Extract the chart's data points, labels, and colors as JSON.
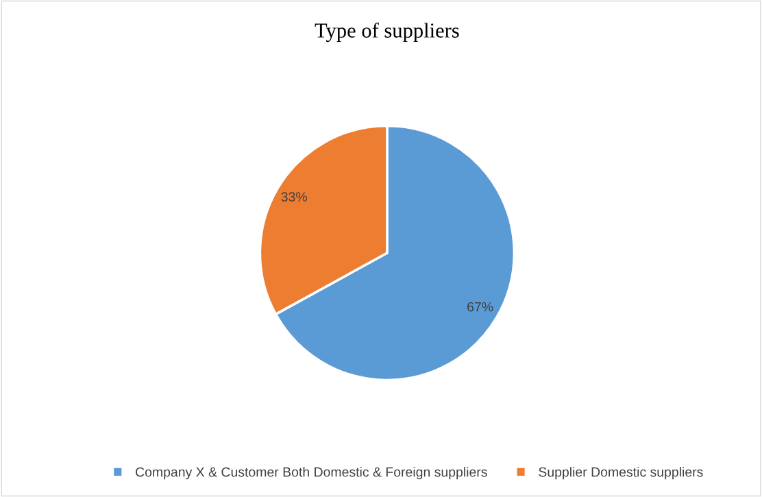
{
  "chart_data": {
    "type": "pie",
    "title": "Type of suppliers",
    "categories": [
      "Company X & Customer Both Domestic & Foreign suppliers",
      "Supplier Domestic suppliers"
    ],
    "values": [
      67,
      33
    ],
    "colors": [
      "#5b9bd5",
      "#ed7d31"
    ],
    "value_labels": [
      "67%",
      "33%"
    ],
    "legend": "bottom"
  }
}
